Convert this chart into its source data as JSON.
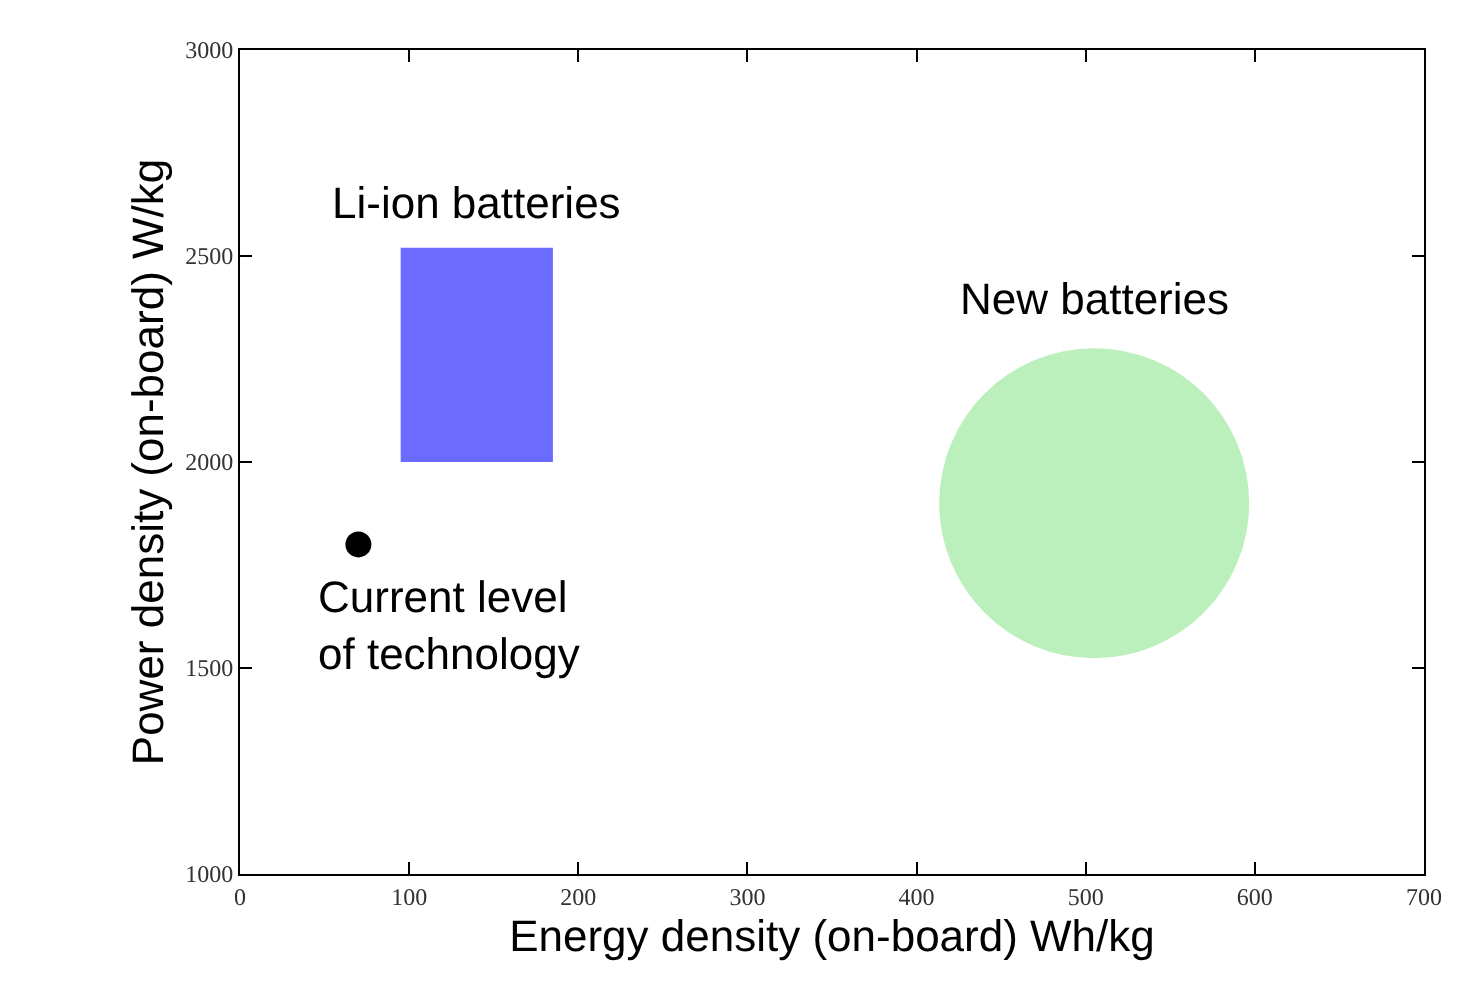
{
  "chart_data": {
    "type": "scatter",
    "xlabel": "Energy density (on-board) Wh/kg",
    "ylabel": "Power density (on-board) W/kg",
    "xlim": [
      0,
      700
    ],
    "xticks": [
      0,
      100,
      200,
      300,
      400,
      500,
      600,
      700
    ],
    "ylim": [
      1000,
      3000
    ],
    "yticks": [
      1000,
      1500,
      2000,
      2500,
      3000
    ],
    "legend": false,
    "series": [
      {
        "name": "Li-ion batteries",
        "type": "area",
        "color": "#3a3aff",
        "x": [
          95,
          95,
          185,
          185,
          95
        ],
        "values": [
          2000,
          2520,
          2520,
          2000,
          2000
        ]
      },
      {
        "name": "New batteries",
        "type": "bubble",
        "color": "#9ee89e",
        "x": [
          505
        ],
        "values": [
          1900
        ],
        "sizes": [
          1
        ]
      },
      {
        "name": "Current level of technology",
        "color": "#000000",
        "marker": "circle",
        "x": [
          70
        ],
        "values": [
          1800
        ]
      }
    ]
  }
}
